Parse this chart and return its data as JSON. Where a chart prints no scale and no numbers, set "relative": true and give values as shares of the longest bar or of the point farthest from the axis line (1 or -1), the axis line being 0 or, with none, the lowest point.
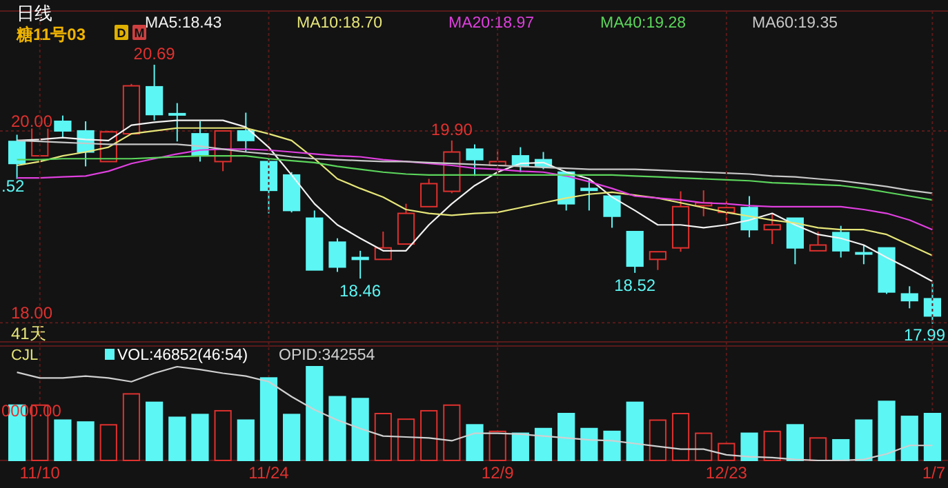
{
  "chart_data": [
    {
      "type": "candlestick",
      "title": "日线",
      "subtitle": "糖11号03",
      "annotations": [
        "D",
        "M",
        "41天",
        ".52",
        "17.99",
        {
          "text": "20.69",
          "y": 20.69
        },
        {
          "text": "19.90",
          "y": 19.9
        },
        {
          "text": "18.46",
          "y": 18.46
        },
        {
          "text": "18.52",
          "y": 18.52
        }
      ],
      "categories": [
        null,
        null,
        null,
        null,
        null,
        null,
        null,
        null,
        null,
        null,
        null,
        null,
        null,
        null,
        null,
        null,
        null,
        null,
        null,
        null,
        null,
        null,
        null,
        null,
        null,
        null,
        null,
        null,
        null,
        null,
        null,
        null,
        null,
        null,
        null,
        null,
        null,
        null,
        null,
        null,
        null
      ],
      "ohlc": [
        [
          19.89,
          19.96,
          19.5,
          19.66
        ],
        [
          19.74,
          20.09,
          19.74,
          20.07
        ],
        [
          20.1,
          20.16,
          19.93,
          20.0
        ],
        [
          20.0,
          20.1,
          19.63,
          19.78
        ],
        [
          19.68,
          20.0,
          19.68,
          19.99
        ],
        [
          19.97,
          20.49,
          19.97,
          20.47
        ],
        [
          20.46,
          20.69,
          20.11,
          20.17
        ],
        [
          20.18,
          20.29,
          19.89,
          20.17
        ],
        [
          19.97,
          20.1,
          19.68,
          19.74
        ],
        [
          19.68,
          20.0,
          19.58,
          20.0
        ],
        [
          20.0,
          20.19,
          19.78,
          19.9
        ],
        [
          19.68,
          19.71,
          19.14,
          19.38
        ],
        [
          19.54,
          19.57,
          19.15,
          19.17
        ],
        [
          19.09,
          19.17,
          18.55,
          18.55
        ],
        [
          18.84,
          18.88,
          18.53,
          18.58
        ],
        [
          18.68,
          18.75,
          18.46,
          18.66
        ],
        [
          18.66,
          18.95,
          18.66,
          18.78
        ],
        [
          18.82,
          19.24,
          18.82,
          19.14
        ],
        [
          19.21,
          19.5,
          19.21,
          19.45
        ],
        [
          19.37,
          19.9,
          19.35,
          19.78
        ],
        [
          19.81,
          19.86,
          19.53,
          19.7
        ],
        [
          19.64,
          19.81,
          19.54,
          19.68
        ],
        [
          19.74,
          19.83,
          19.57,
          19.64
        ],
        [
          19.7,
          19.78,
          19.6,
          19.63
        ],
        [
          19.57,
          19.57,
          19.17,
          19.24
        ],
        [
          19.4,
          19.5,
          19.17,
          19.38
        ],
        [
          19.32,
          19.32,
          18.99,
          19.11
        ],
        [
          18.95,
          18.95,
          18.52,
          18.59
        ],
        [
          18.66,
          18.74,
          18.55,
          18.74
        ],
        [
          18.78,
          19.37,
          18.74,
          19.21
        ],
        [
          19.22,
          19.38,
          19.11,
          19.25
        ],
        [
          19.15,
          19.27,
          19.05,
          19.2
        ],
        [
          19.2,
          19.32,
          18.89,
          18.97
        ],
        [
          18.97,
          19.14,
          18.82,
          19.02
        ],
        [
          19.09,
          19.09,
          18.61,
          18.78
        ],
        [
          18.75,
          18.95,
          18.75,
          18.81
        ],
        [
          18.94,
          19.01,
          18.68,
          18.75
        ],
        [
          18.73,
          18.81,
          18.61,
          18.72
        ],
        [
          18.78,
          18.78,
          18.3,
          18.32
        ],
        [
          18.3,
          18.38,
          18.15,
          18.23
        ],
        [
          18.25,
          18.42,
          17.99,
          18.07
        ]
      ],
      "colors": [
        "#5cf6f4",
        "#e0312f",
        "#5cf6f4",
        "#5cf6f4",
        "#e0312f",
        "#e0312f",
        "#5cf6f4",
        "#5cf6f4",
        "#5cf6f4",
        "#e0312f",
        "#5cf6f4",
        "#5cf6f4",
        "#5cf6f4",
        "#5cf6f4",
        "#5cf6f4",
        "#5cf6f4",
        "#e0312f",
        "#e0312f",
        "#e0312f",
        "#e0312f",
        "#5cf6f4",
        "#e0312f",
        "#5cf6f4",
        "#5cf6f4",
        "#5cf6f4",
        "#5cf6f4",
        "#5cf6f4",
        "#5cf6f4",
        "#e0312f",
        "#e0312f",
        "#e0312f",
        "#e0312f",
        "#5cf6f4",
        "#e0312f",
        "#5cf6f4",
        "#e0312f",
        "#5cf6f4",
        "#5cf6f4",
        "#5cf6f4",
        "#5cf6f4",
        "#5cf6f4"
      ],
      "series": [
        {
          "name": "MA5:18.43",
          "type": "line",
          "color": "#f2f2f2",
          "values": [
            19.9,
            19.91,
            19.93,
            19.91,
            19.9,
            20.06,
            20.09,
            20.11,
            20.11,
            20.11,
            20.04,
            19.83,
            19.54,
            19.24,
            19.02,
            18.88,
            18.75,
            18.75,
            19.02,
            19.24,
            19.43,
            19.57,
            19.66,
            19.67,
            19.57,
            19.5,
            19.31,
            19.17,
            19.02,
            19.02,
            18.99,
            19.02,
            19.07,
            19.14,
            19.02,
            18.92,
            18.88,
            18.81,
            18.68,
            18.56,
            18.43
          ]
        },
        {
          "name": "MA10:18.70",
          "type": "line",
          "color": "#e6e67a",
          "values": [
            19.64,
            19.68,
            19.74,
            19.78,
            19.83,
            19.97,
            20.0,
            20.03,
            20.03,
            20.03,
            20.03,
            19.97,
            19.9,
            19.71,
            19.5,
            19.4,
            19.31,
            19.18,
            19.14,
            19.12,
            19.14,
            19.15,
            19.2,
            19.25,
            19.3,
            19.34,
            19.36,
            19.33,
            19.3,
            19.25,
            19.2,
            19.15,
            19.11,
            19.07,
            19.04,
            18.99,
            18.97,
            18.97,
            18.92,
            18.81,
            18.7
          ]
        },
        {
          "name": "MA20:18.97",
          "type": "line",
          "color": "#e040e0",
          "values": [
            19.51,
            19.51,
            19.52,
            19.53,
            19.58,
            19.66,
            19.71,
            19.76,
            19.8,
            19.81,
            19.81,
            19.8,
            19.78,
            19.76,
            19.74,
            19.73,
            19.7,
            19.68,
            19.66,
            19.64,
            19.61,
            19.6,
            19.58,
            19.57,
            19.53,
            19.47,
            19.4,
            19.32,
            19.3,
            19.28,
            19.25,
            19.24,
            19.22,
            19.21,
            19.21,
            19.21,
            19.21,
            19.18,
            19.14,
            19.07,
            18.97
          ]
        },
        {
          "name": "MA40:19.28",
          "type": "line",
          "color": "#5cd65c",
          "values": [
            19.7,
            19.7,
            19.71,
            19.71,
            19.71,
            19.71,
            19.72,
            19.73,
            19.74,
            19.74,
            19.74,
            19.71,
            19.69,
            19.67,
            19.63,
            19.6,
            19.57,
            19.55,
            19.54,
            19.54,
            19.54,
            19.54,
            19.54,
            19.54,
            19.54,
            19.54,
            19.54,
            19.53,
            19.52,
            19.51,
            19.5,
            19.49,
            19.48,
            19.46,
            19.45,
            19.44,
            19.43,
            19.4,
            19.36,
            19.32,
            19.28
          ]
        },
        {
          "name": "MA60:19.35",
          "type": "line",
          "color": "#c8c8c8",
          "values": [
            19.9,
            19.89,
            19.88,
            19.87,
            19.86,
            19.86,
            19.86,
            19.86,
            19.84,
            19.81,
            19.78,
            19.76,
            19.73,
            19.71,
            19.7,
            19.69,
            19.68,
            19.68,
            19.67,
            19.66,
            19.65,
            19.64,
            19.63,
            19.62,
            19.61,
            19.6,
            19.6,
            19.6,
            19.59,
            19.58,
            19.57,
            19.56,
            19.55,
            19.53,
            19.52,
            19.5,
            19.48,
            19.45,
            19.42,
            19.38,
            19.35
          ]
        }
      ],
      "ylim": [
        17.8,
        21.25
      ],
      "yticks": [
        {
          "value": 18,
          "label": "18.00"
        },
        {
          "value": 20,
          "label": "20.00"
        }
      ],
      "grid": "y",
      "tick_labels": "y",
      "legend": "top"
    },
    {
      "type": "bar",
      "title": "CJL",
      "relative": true,
      "annotations": [
        "0000.00"
      ],
      "categories": [
        null,
        "11/10",
        null,
        null,
        null,
        null,
        null,
        null,
        null,
        null,
        null,
        "11/24",
        null,
        null,
        null,
        null,
        null,
        null,
        null,
        null,
        null,
        "12/9",
        null,
        null,
        null,
        null,
        null,
        null,
        null,
        null,
        null,
        "12/23",
        null,
        null,
        null,
        null,
        null,
        null,
        null,
        null,
        "1/7"
      ],
      "series": [
        {
          "name": "VOL:46852(46:54)",
          "type": "bar",
          "colors": [
            "#5cf6f4",
            "#e0312f",
            "#5cf6f4",
            "#5cf6f4",
            "#e0312f",
            "#e0312f",
            "#5cf6f4",
            "#5cf6f4",
            "#5cf6f4",
            "#e0312f",
            "#5cf6f4",
            "#5cf6f4",
            "#5cf6f4",
            "#5cf6f4",
            "#5cf6f4",
            "#5cf6f4",
            "#e0312f",
            "#e0312f",
            "#e0312f",
            "#e0312f",
            "#5cf6f4",
            "#e0312f",
            "#5cf6f4",
            "#5cf6f4",
            "#5cf6f4",
            "#5cf6f4",
            "#5cf6f4",
            "#5cf6f4",
            "#e0312f",
            "#e0312f",
            "#e0312f",
            "#e0312f",
            "#5cf6f4",
            "#e0312f",
            "#5cf6f4",
            "#e0312f",
            "#5cf6f4",
            "#5cf6f4",
            "#5cf6f4",
            "#5cf6f4",
            "#5cf6f4"
          ],
          "values": [
            0.59,
            0.59,
            0.43,
            0.41,
            0.38,
            0.71,
            0.62,
            0.46,
            0.49,
            0.53,
            0.43,
            0.88,
            0.49,
            1,
            0.68,
            0.66,
            0.5,
            0.44,
            0.53,
            0.59,
            0.38,
            0.31,
            0.29,
            0.34,
            0.5,
            0.34,
            0.31,
            0.62,
            0.43,
            0.5,
            0.29,
            0.18,
            0.29,
            0.31,
            0.38,
            0.24,
            0.22,
            0.43,
            0.63,
            0.47,
            0.5
          ]
        },
        {
          "name": "OPID:342554",
          "type": "line",
          "color": "#d0d0d0",
          "values": [
            0.94,
            0.88,
            0.88,
            0.9,
            0.88,
            0.84,
            0.93,
            1,
            0.97,
            0.93,
            0.9,
            0.84,
            0.68,
            0.54,
            0.43,
            0.34,
            0.26,
            0.25,
            0.24,
            0.21,
            0.29,
            0.29,
            0.28,
            0.26,
            0.24,
            0.22,
            0.21,
            0.18,
            0.15,
            0.12,
            0.12,
            0.06,
            0.04,
            0.03,
            0.01,
            0,
            0,
            0.01,
            0.07,
            0.16,
            0.16
          ]
        }
      ],
      "grid": "x",
      "tick_labels": "x",
      "legend": "top"
    }
  ]
}
